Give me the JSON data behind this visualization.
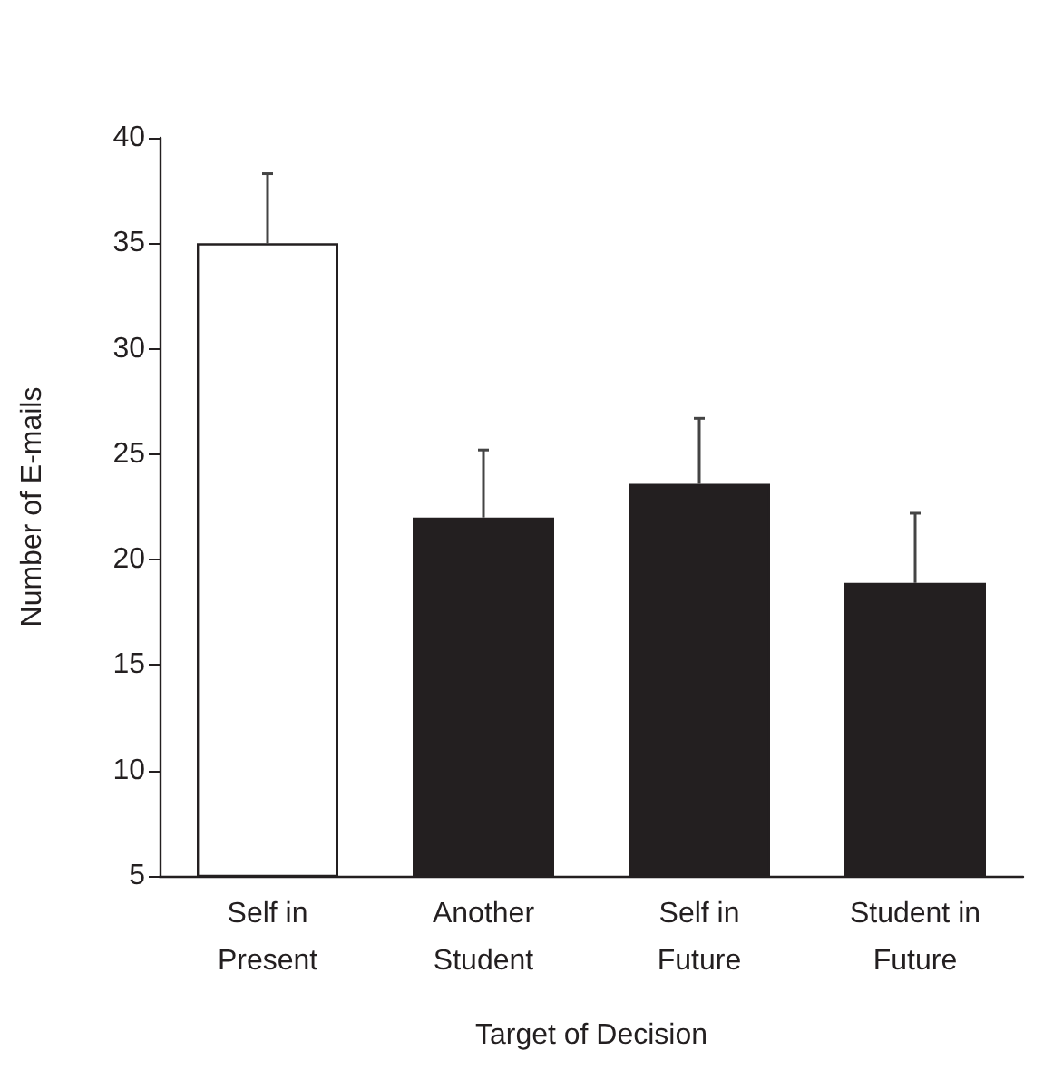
{
  "chart_data": {
    "type": "bar",
    "categories": [
      "Self in\nPresent",
      "Another\nStudent",
      "Self in\nFuture",
      "Student in\nFuture"
    ],
    "values": [
      35,
      22,
      23.6,
      18.9
    ],
    "colors": [
      "#ffffff",
      "#231f20",
      "#231f20",
      "#231f20"
    ],
    "errors": [
      [
        35,
        38.3
      ],
      [
        22,
        25.2
      ],
      [
        23.6,
        26.7
      ],
      [
        18.9,
        22.2
      ]
    ],
    "xlabel": "Target of Decision",
    "ylabel": "Number of E-mails",
    "ylim": [
      5,
      40
    ],
    "yticks": [
      5,
      10,
      15,
      20,
      25,
      30,
      35,
      40
    ],
    "grid": false
  }
}
